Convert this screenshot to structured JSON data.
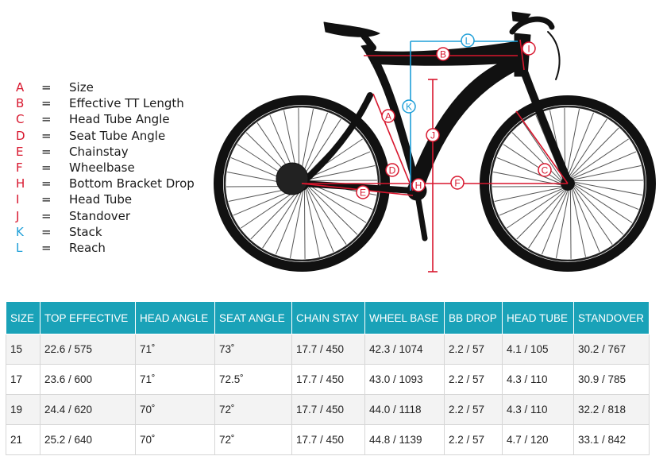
{
  "colors": {
    "dimension_red": "#d8172e",
    "dimension_blue": "#1e9fd8",
    "header_teal": "#1aa2b8",
    "bike": "#111111"
  },
  "legend": [
    {
      "letter": "A",
      "label": "Size",
      "color": "red"
    },
    {
      "letter": "B",
      "label": "Effective TT Length",
      "color": "red"
    },
    {
      "letter": "C",
      "label": "Head Tube Angle",
      "color": "red"
    },
    {
      "letter": "D",
      "label": "Seat Tube Angle",
      "color": "red"
    },
    {
      "letter": "E",
      "label": "Chainstay",
      "color": "red"
    },
    {
      "letter": "F",
      "label": "Wheelbase",
      "color": "red"
    },
    {
      "letter": "H",
      "label": "Bottom Bracket Drop",
      "color": "red"
    },
    {
      "letter": "I",
      "label": "Head Tube",
      "color": "red"
    },
    {
      "letter": "J",
      "label": "Standover",
      "color": "red"
    },
    {
      "letter": "K",
      "label": "Stack",
      "color": "blue"
    },
    {
      "letter": "L",
      "label": "Reach",
      "color": "blue"
    }
  ],
  "legend_separator": "=",
  "diagram_markers": [
    "A",
    "B",
    "C",
    "D",
    "E",
    "F",
    "H",
    "I",
    "J",
    "K",
    "L"
  ],
  "table": {
    "headers": [
      "SIZE",
      "TOP EFFECTIVE",
      "HEAD ANGLE",
      "SEAT ANGLE",
      "CHAIN STAY",
      "WHEEL BASE",
      "BB DROP",
      "HEAD TUBE",
      "STANDOVER"
    ],
    "rows": [
      [
        "15",
        "22.6 / 575",
        "71˚",
        "73˚",
        "17.7 / 450",
        "42.3 / 1074",
        "2.2 / 57",
        "4.1 / 105",
        "30.2 / 767"
      ],
      [
        "17",
        "23.6 / 600",
        "71˚",
        "72.5˚",
        "17.7 / 450",
        "43.0 / 1093",
        "2.2 / 57",
        "4.3 / 110",
        "30.9 / 785"
      ],
      [
        "19",
        "24.4 / 620",
        "70˚",
        "72˚",
        "17.7 / 450",
        "44.0 / 1118",
        "2.2 / 57",
        "4.3 / 110",
        "32.2 / 818"
      ],
      [
        "21",
        "25.2 / 640",
        "70˚",
        "72˚",
        "17.7 / 450",
        "44.8 / 1139",
        "2.2 / 57",
        "4.7 / 120",
        "33.1 / 842"
      ]
    ]
  }
}
